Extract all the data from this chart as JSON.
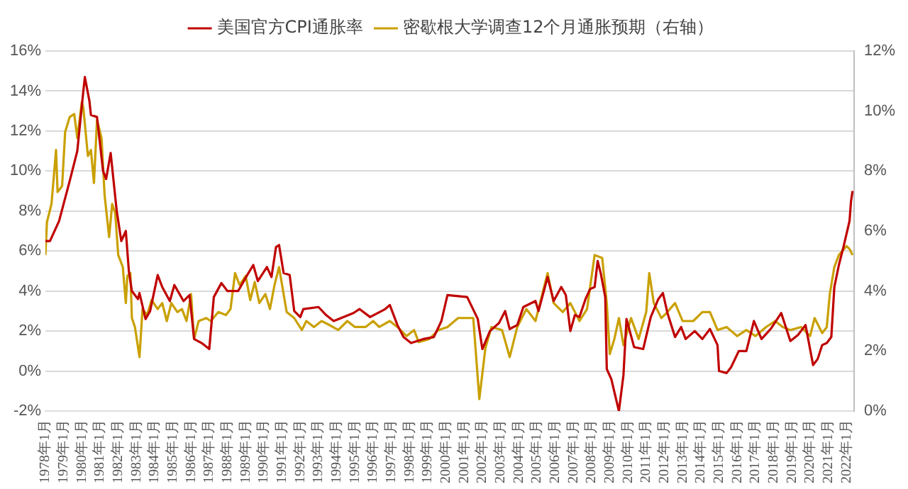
{
  "chart_data": {
    "type": "line",
    "legend": "top",
    "grid": "y",
    "marker": "none",
    "line_style": "solid",
    "xlim": [
      "1978-01",
      "2022-06"
    ],
    "xticks": [
      {
        "value": "1978-01",
        "label": "1978年1月"
      },
      {
        "value": "1979-01",
        "label": "1979年1月"
      },
      {
        "value": "1980-01",
        "label": "1980年1月"
      },
      {
        "value": "1981-01",
        "label": "1981年1月"
      },
      {
        "value": "1982-01",
        "label": "1982年1月"
      },
      {
        "value": "1983-01",
        "label": "1983年1月"
      },
      {
        "value": "1984-01",
        "label": "1984年1月"
      },
      {
        "value": "1985-01",
        "label": "1985年1月"
      },
      {
        "value": "1986-01",
        "label": "1986年1月"
      },
      {
        "value": "1987-01",
        "label": "1987年1月"
      },
      {
        "value": "1988-01",
        "label": "1988年1月"
      },
      {
        "value": "1989-01",
        "label": "1989年1月"
      },
      {
        "value": "1990-01",
        "label": "1990年1月"
      },
      {
        "value": "1991-01",
        "label": "1991年1月"
      },
      {
        "value": "1992-01",
        "label": "1992年1月"
      },
      {
        "value": "1993-01",
        "label": "1993年1月"
      },
      {
        "value": "1994-01",
        "label": "1994年1月"
      },
      {
        "value": "1995-01",
        "label": "1995年1月"
      },
      {
        "value": "1996-01",
        "label": "1996年1月"
      },
      {
        "value": "1997-01",
        "label": "1997年1月"
      },
      {
        "value": "1998-01",
        "label": "1998年1月"
      },
      {
        "value": "1999-01",
        "label": "1999年1月"
      },
      {
        "value": "2000-01",
        "label": "2000年1月"
      },
      {
        "value": "2001-01",
        "label": "2001年1月"
      },
      {
        "value": "2002-01",
        "label": "2002年1月"
      },
      {
        "value": "2003-01",
        "label": "2003年1月"
      },
      {
        "value": "2004-01",
        "label": "2004年1月"
      },
      {
        "value": "2005-01",
        "label": "2005年1月"
      },
      {
        "value": "2006-01",
        "label": "2006年1月"
      },
      {
        "value": "2007-01",
        "label": "2007年1月"
      },
      {
        "value": "2008-01",
        "label": "2008年1月"
      },
      {
        "value": "2009-01",
        "label": "2009年1月"
      },
      {
        "value": "2010-01",
        "label": "2010年1月"
      },
      {
        "value": "2011-01",
        "label": "2011年1月"
      },
      {
        "value": "2012-01",
        "label": "2012年1月"
      },
      {
        "value": "2013-01",
        "label": "2013年1月"
      },
      {
        "value": "2014-01",
        "label": "2014年1月"
      },
      {
        "value": "2015-01",
        "label": "2015年1月"
      },
      {
        "value": "2016-01",
        "label": "2016年1月"
      },
      {
        "value": "2017-01",
        "label": "2017年1月"
      },
      {
        "value": "2018-01",
        "label": "2018年1月"
      },
      {
        "value": "2019-01",
        "label": "2019年1月"
      },
      {
        "value": "2020-01",
        "label": "2020年1月"
      },
      {
        "value": "2021-01",
        "label": "2021年1月"
      },
      {
        "value": "2022-01",
        "label": "2022年1月"
      }
    ],
    "ylim": [
      -2,
      16
    ],
    "yticks": [
      {
        "value": -2,
        "label": "-2%"
      },
      {
        "value": 0,
        "label": "0%"
      },
      {
        "value": 2,
        "label": "2%"
      },
      {
        "value": 4,
        "label": "4%"
      },
      {
        "value": 6,
        "label": "6%"
      },
      {
        "value": 8,
        "label": "8%"
      },
      {
        "value": 10,
        "label": "10%"
      },
      {
        "value": 12,
        "label": "12%"
      },
      {
        "value": 14,
        "label": "14%"
      },
      {
        "value": 16,
        "label": "16%"
      }
    ],
    "y2lim": [
      0,
      12
    ],
    "y2ticks": [
      {
        "value": 0,
        "label": "0%"
      },
      {
        "value": 2,
        "label": "2%"
      },
      {
        "value": 4,
        "label": "4%"
      },
      {
        "value": 6,
        "label": "6%"
      },
      {
        "value": 8,
        "label": "8%"
      },
      {
        "value": 10,
        "label": "10%"
      },
      {
        "value": 12,
        "label": "12%"
      }
    ],
    "series": [
      {
        "name": "美国官方CPI通胀率",
        "color": "#c00000",
        "x": [
          "1978-01",
          "1978-04",
          "1978-10",
          "1979-05",
          "1979-10",
          "1980-02",
          "1980-03",
          "1980-06",
          "1980-07",
          "1980-11",
          "1981-03",
          "1981-05",
          "1981-08",
          "1981-12",
          "1982-03",
          "1982-06",
          "1982-08",
          "1982-10",
          "1983-02",
          "1983-03",
          "1983-07",
          "1983-10",
          "1984-03",
          "1984-06",
          "1984-11",
          "1985-02",
          "1985-08",
          "1985-12",
          "1986-03",
          "1986-08",
          "1987-01",
          "1987-04",
          "1987-09",
          "1988-01",
          "1988-08",
          "1989-02",
          "1989-06",
          "1989-09",
          "1990-03",
          "1990-06",
          "1990-09",
          "1990-11",
          "1991-02",
          "1991-06",
          "1991-09",
          "1992-01",
          "1992-03",
          "1993-01",
          "1993-06",
          "1993-11",
          "1994-12",
          "1995-04",
          "1995-11",
          "1996-09",
          "1996-12",
          "1997-05",
          "1997-09",
          "1998-02",
          "1998-10",
          "1999-05",
          "1999-10",
          "2000-02",
          "2001-03",
          "2001-10",
          "2002-01",
          "2002-06",
          "2002-12",
          "2003-04",
          "2003-07",
          "2003-12",
          "2004-04",
          "2004-12",
          "2005-02",
          "2005-08",
          "2005-12",
          "2006-05",
          "2006-08",
          "2006-11",
          "2007-02",
          "2007-05",
          "2007-09",
          "2007-12",
          "2008-03",
          "2008-05",
          "2008-07",
          "2008-10",
          "2008-11",
          "2009-02",
          "2009-07",
          "2009-10",
          "2009-12",
          "2010-05",
          "2010-11",
          "2011-04",
          "2011-09",
          "2011-12",
          "2012-03",
          "2012-08",
          "2012-12",
          "2013-03",
          "2013-09",
          "2014-02",
          "2014-07",
          "2014-12",
          "2015-01",
          "2015-06",
          "2015-09",
          "2016-02",
          "2016-07",
          "2016-12",
          "2017-05",
          "2017-11",
          "2018-06",
          "2018-12",
          "2019-05",
          "2019-10",
          "2020-03",
          "2020-06",
          "2020-09",
          "2020-12",
          "2021-03",
          "2021-05",
          "2021-08",
          "2021-11",
          "2022-03",
          "2022-04",
          "2022-05"
        ],
        "values": [
          6.5,
          6.5,
          7.5,
          9.5,
          11.0,
          14.0,
          14.7,
          13.5,
          12.8,
          12.7,
          10.0,
          9.6,
          10.9,
          8.0,
          6.5,
          7.0,
          5.0,
          4.0,
          3.6,
          3.9,
          2.6,
          3.0,
          4.8,
          4.2,
          3.5,
          4.3,
          3.5,
          3.8,
          1.6,
          1.4,
          1.1,
          3.7,
          4.4,
          4.0,
          4.0,
          4.8,
          5.3,
          4.5,
          5.2,
          4.7,
          6.2,
          6.3,
          4.9,
          4.8,
          3.0,
          2.7,
          3.1,
          3.2,
          2.8,
          2.5,
          2.9,
          3.1,
          2.7,
          3.1,
          3.3,
          2.3,
          1.7,
          1.4,
          1.6,
          1.7,
          2.5,
          3.8,
          3.7,
          2.6,
          1.1,
          2.0,
          2.4,
          3.0,
          2.1,
          2.3,
          3.2,
          3.5,
          3.0,
          4.7,
          3.5,
          4.2,
          3.8,
          2.0,
          2.8,
          2.7,
          3.6,
          4.1,
          4.2,
          5.5,
          4.9,
          3.7,
          0.1,
          -0.4,
          -2.0,
          -0.2,
          2.6,
          1.2,
          1.1,
          2.7,
          3.6,
          3.9,
          2.9,
          1.7,
          2.2,
          1.6,
          2.0,
          1.6,
          2.1,
          1.3,
          0.0,
          -0.1,
          0.2,
          1.0,
          1.0,
          2.5,
          1.6,
          2.1,
          2.9,
          1.5,
          1.8,
          2.3,
          0.3,
          0.6,
          1.3,
          1.4,
          1.7,
          4.2,
          5.3,
          6.2,
          7.5,
          8.5,
          9.0
        ]
      },
      {
        "name": "密歇根大学调查12个月通胀预期（右轴）",
        "color": "#c9a000",
        "axis": "y2",
        "x": [
          "1978-01",
          "1978-02",
          "1978-05",
          "1978-08",
          "1978-09",
          "1978-12",
          "1979-02",
          "1979-05",
          "1979-08",
          "1979-10",
          "1980-01",
          "1980-02",
          "1980-05",
          "1980-07",
          "1980-09",
          "1980-11",
          "1981-02",
          "1981-04",
          "1981-07",
          "1981-09",
          "1981-11",
          "1982-01",
          "1982-04",
          "1982-06",
          "1982-07",
          "1982-09",
          "1982-10",
          "1982-12",
          "1983-03",
          "1983-05",
          "1983-08",
          "1983-11",
          "1984-03",
          "1984-06",
          "1984-09",
          "1984-12",
          "1985-04",
          "1985-07",
          "1985-10",
          "1986-01",
          "1986-03",
          "1986-06",
          "1986-11",
          "1987-02",
          "1987-07",
          "1987-12",
          "1988-03",
          "1988-06",
          "1988-09",
          "1989-01",
          "1989-04",
          "1989-07",
          "1989-10",
          "1990-02",
          "1990-05",
          "1990-08",
          "1990-11",
          "1991-01",
          "1991-04",
          "1991-09",
          "1992-02",
          "1992-05",
          "1992-10",
          "1993-03",
          "1993-07",
          "1994-02",
          "1994-08",
          "1995-01",
          "1995-08",
          "1996-01",
          "1996-05",
          "1996-12",
          "1997-05",
          "1997-11",
          "1998-04",
          "1998-07",
          "1999-02",
          "1999-08",
          "2000-02",
          "2000-09",
          "2001-07",
          "2001-11",
          "2002-03",
          "2002-07",
          "2003-02",
          "2003-07",
          "2003-12",
          "2004-06",
          "2004-12",
          "2005-08",
          "2005-12",
          "2006-06",
          "2006-11",
          "2007-05",
          "2007-10",
          "2008-03",
          "2008-08",
          "2008-11",
          "2009-01",
          "2009-04",
          "2009-07",
          "2009-10",
          "2010-03",
          "2010-08",
          "2011-01",
          "2011-03",
          "2011-06",
          "2011-11",
          "2012-03",
          "2012-08",
          "2013-01",
          "2013-08",
          "2014-02",
          "2014-07",
          "2014-12",
          "2015-06",
          "2016-01",
          "2016-07",
          "2017-01",
          "2017-08",
          "2018-02",
          "2018-07",
          "2018-12",
          "2019-07",
          "2020-01",
          "2020-04",
          "2020-09",
          "2020-12",
          "2021-02",
          "2021-05",
          "2021-08",
          "2022-01",
          "2022-03",
          "2022-05"
        ],
        "values": [
          5.2,
          6.3,
          6.9,
          8.7,
          7.3,
          7.5,
          9.3,
          9.8,
          9.9,
          9.1,
          10.3,
          10.1,
          8.5,
          8.7,
          7.6,
          9.7,
          9.1,
          7.2,
          5.8,
          6.9,
          6.6,
          5.2,
          4.8,
          3.6,
          4.5,
          4.6,
          3.1,
          2.8,
          1.8,
          3.4,
          3.2,
          3.7,
          3.4,
          3.6,
          3.0,
          3.6,
          3.3,
          3.4,
          3.0,
          3.9,
          2.4,
          3.0,
          3.1,
          3.0,
          3.3,
          3.2,
          3.4,
          4.6,
          4.2,
          4.5,
          3.7,
          4.3,
          3.6,
          3.9,
          3.4,
          4.2,
          4.8,
          4.2,
          3.3,
          3.1,
          2.7,
          3.0,
          2.8,
          3.0,
          2.9,
          2.7,
          3.0,
          2.8,
          2.8,
          3.0,
          2.8,
          3.0,
          2.8,
          2.5,
          2.7,
          2.3,
          2.4,
          2.7,
          2.8,
          3.1,
          3.1,
          0.4,
          2.1,
          2.8,
          2.7,
          1.8,
          2.8,
          3.4,
          3.0,
          4.6,
          3.6,
          3.3,
          3.6,
          3.0,
          3.4,
          5.2,
          5.1,
          3.6,
          1.9,
          2.4,
          3.1,
          2.2,
          3.1,
          2.4,
          3.3,
          4.6,
          3.6,
          3.1,
          3.3,
          3.6,
          3.0,
          3.0,
          3.3,
          3.3,
          2.7,
          2.8,
          2.5,
          2.7,
          2.5,
          2.8,
          3.0,
          2.8,
          2.7,
          2.8,
          2.5,
          3.1,
          2.6,
          2.8,
          3.9,
          4.8,
          5.2,
          5.5,
          5.4,
          5.2
        ]
      }
    ]
  }
}
